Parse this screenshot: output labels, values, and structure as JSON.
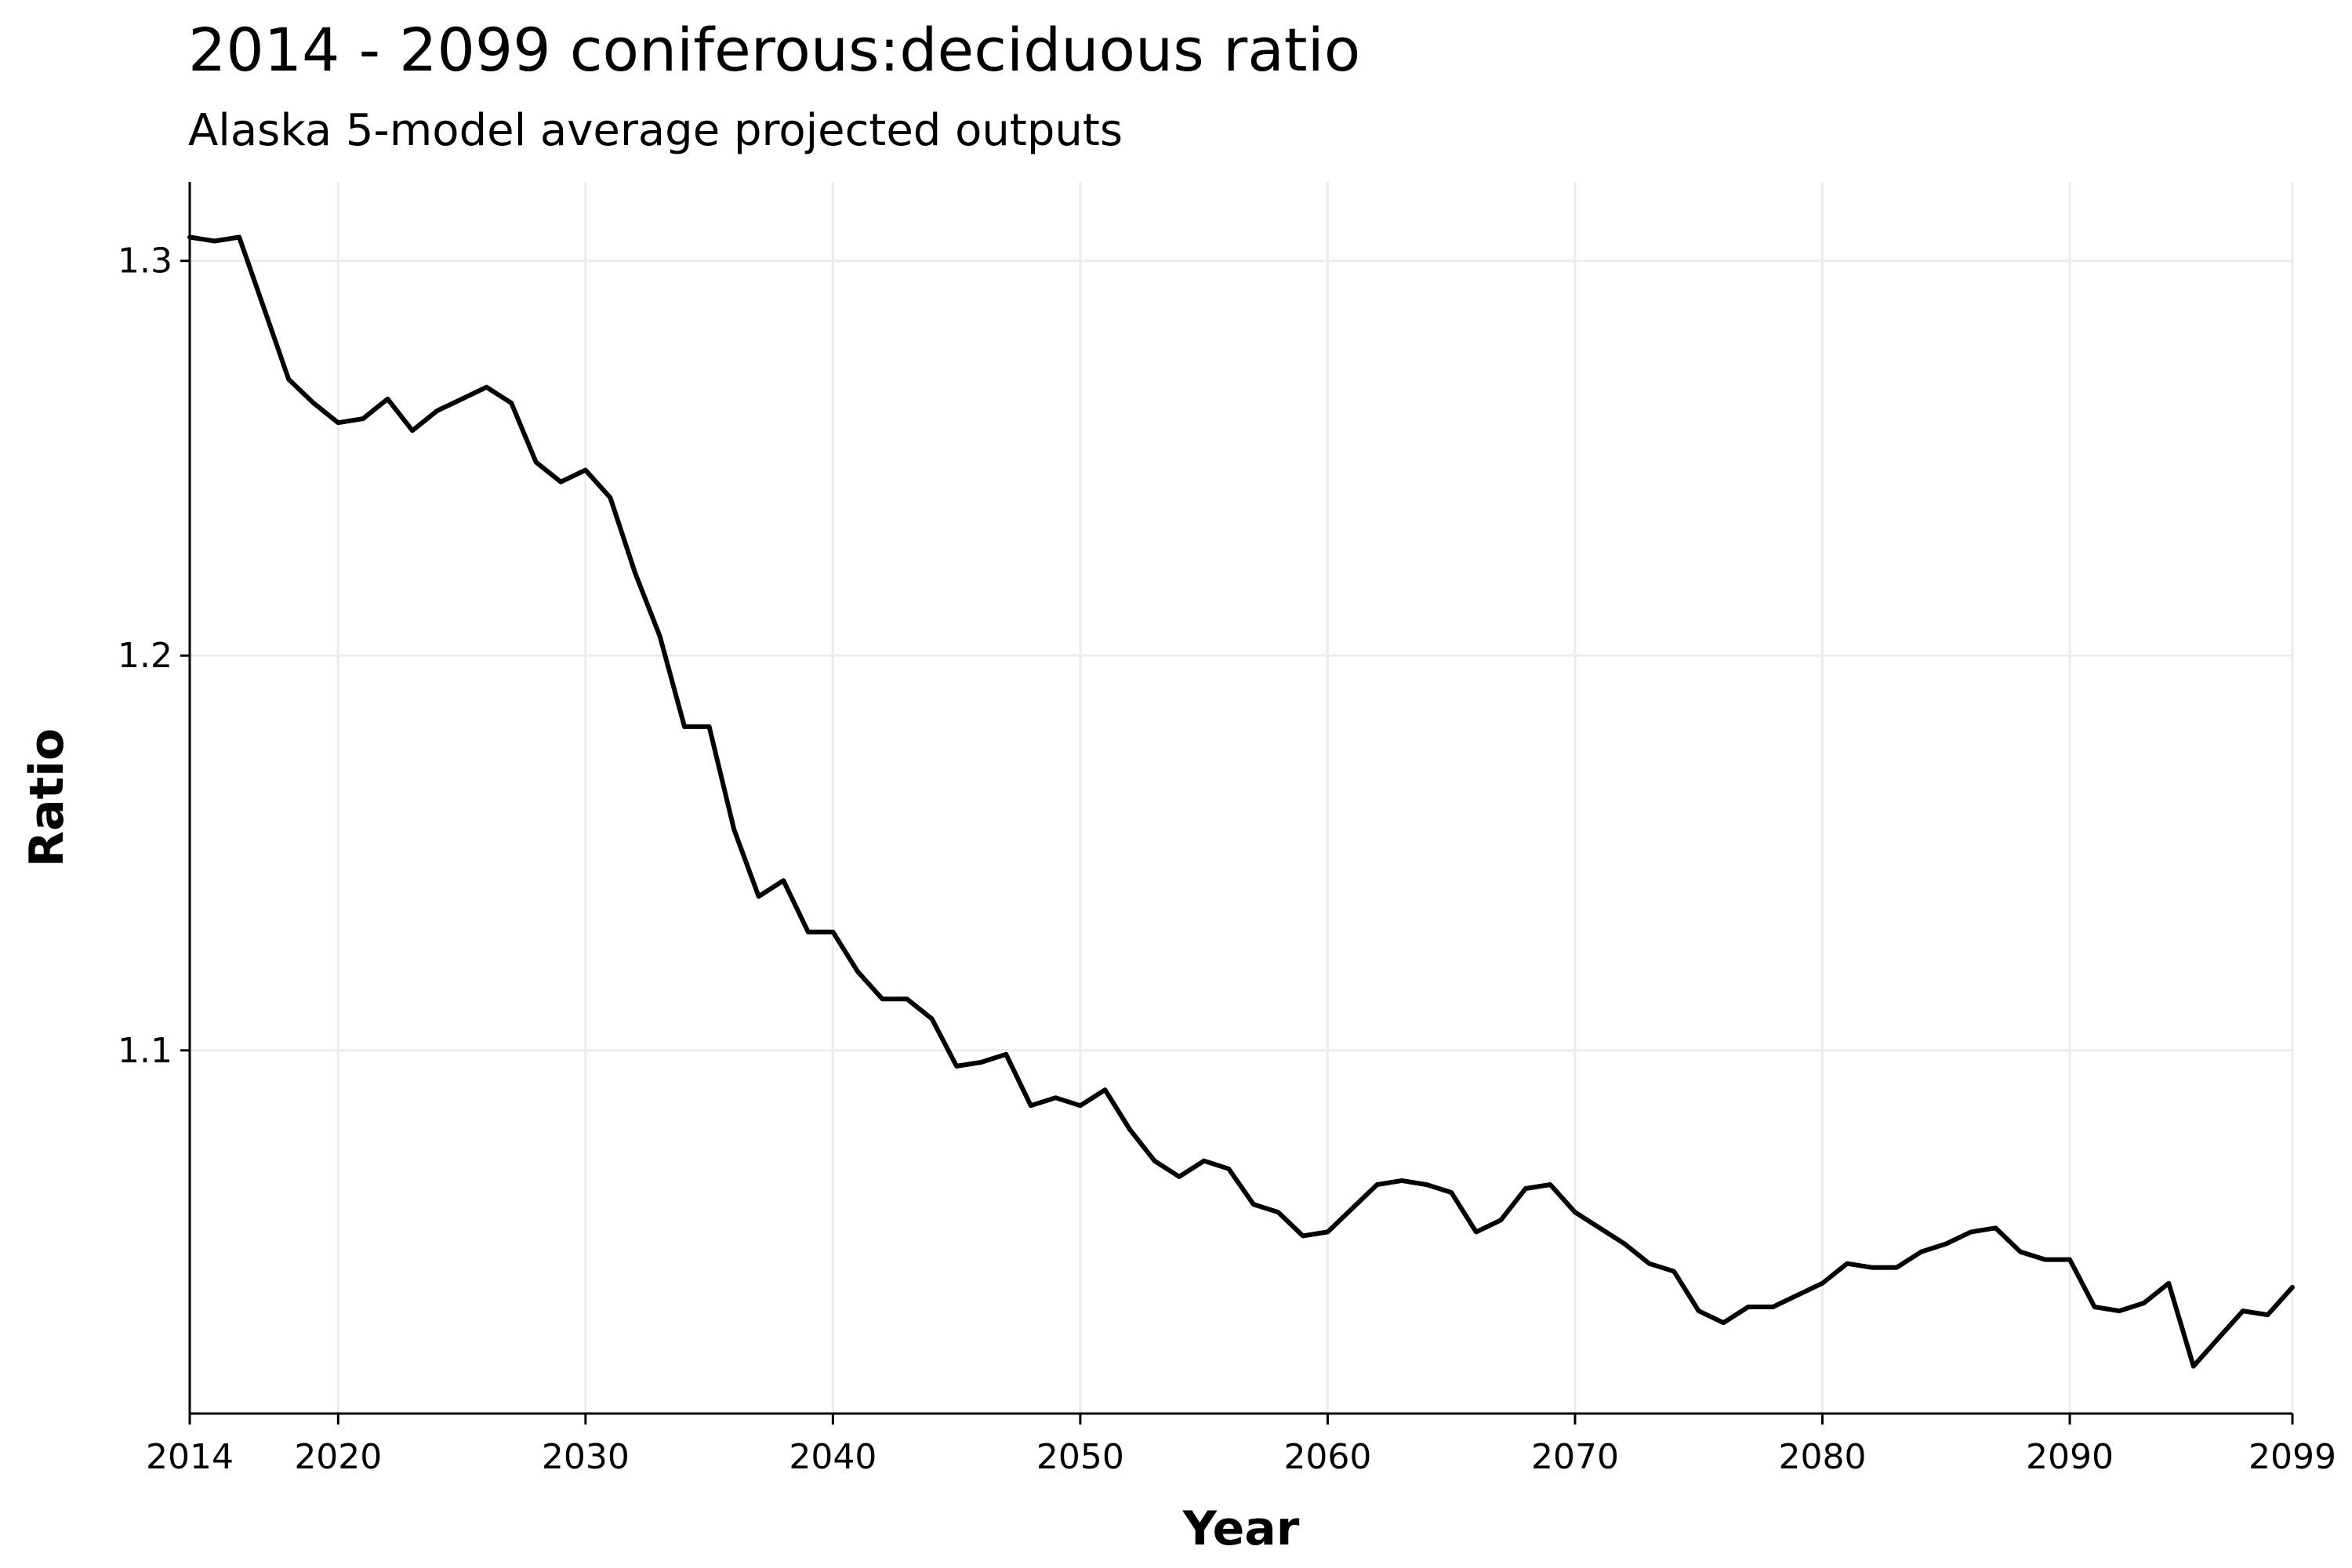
{
  "chart_data": {
    "type": "line",
    "title": "2014 - 2099 coniferous:deciduous ratio",
    "subtitle": "Alaska 5-model average projected outputs",
    "xlabel": "Year",
    "ylabel": "Ratio",
    "xlim": [
      2014,
      2099
    ],
    "ylim": [
      1.008,
      1.32
    ],
    "x_ticks": [
      2014,
      2020,
      2030,
      2040,
      2050,
      2060,
      2070,
      2080,
      2090,
      2099
    ],
    "y_ticks": [
      1.1,
      1.2,
      1.3
    ],
    "y_tick_labels": [
      "1.1",
      "1.2",
      "1.3"
    ],
    "grid": true,
    "legend": "none",
    "line_color": "#000000",
    "grid_color": "#ececec",
    "x": [
      2014,
      2015,
      2016,
      2017,
      2018,
      2019,
      2020,
      2021,
      2022,
      2023,
      2024,
      2025,
      2026,
      2027,
      2028,
      2029,
      2030,
      2031,
      2032,
      2033,
      2034,
      2035,
      2036,
      2037,
      2038,
      2039,
      2040,
      2041,
      2042,
      2043,
      2044,
      2045,
      2046,
      2047,
      2048,
      2049,
      2050,
      2051,
      2052,
      2053,
      2054,
      2055,
      2056,
      2057,
      2058,
      2059,
      2060,
      2061,
      2062,
      2063,
      2064,
      2065,
      2066,
      2067,
      2068,
      2069,
      2070,
      2071,
      2072,
      2073,
      2074,
      2075,
      2076,
      2077,
      2078,
      2079,
      2080,
      2081,
      2082,
      2083,
      2084,
      2085,
      2086,
      2087,
      2088,
      2089,
      2090,
      2091,
      2092,
      2093,
      2094,
      2095,
      2096,
      2097,
      2098,
      2099
    ],
    "series": [
      {
        "values": [
          1.306,
          1.305,
          1.306,
          1.288,
          1.27,
          1.264,
          1.259,
          1.26,
          1.265,
          1.257,
          1.262,
          1.265,
          1.268,
          1.264,
          1.249,
          1.244,
          1.247,
          1.24,
          1.221,
          1.205,
          1.182,
          1.182,
          1.156,
          1.139,
          1.143,
          1.13,
          1.13,
          1.12,
          1.113,
          1.113,
          1.108,
          1.096,
          1.097,
          1.099,
          1.086,
          1.088,
          1.086,
          1.09,
          1.08,
          1.072,
          1.068,
          1.072,
          1.07,
          1.061,
          1.059,
          1.053,
          1.054,
          1.06,
          1.066,
          1.067,
          1.066,
          1.064,
          1.054,
          1.057,
          1.065,
          1.066,
          1.059,
          1.055,
          1.051,
          1.046,
          1.044,
          1.034,
          1.031,
          1.035,
          1.035,
          1.038,
          1.041,
          1.046,
          1.045,
          1.045,
          1.049,
          1.051,
          1.054,
          1.055,
          1.049,
          1.047,
          1.047,
          1.035,
          1.034,
          1.036,
          1.041,
          1.02,
          1.027,
          1.034,
          1.033,
          1.04
        ]
      }
    ]
  }
}
